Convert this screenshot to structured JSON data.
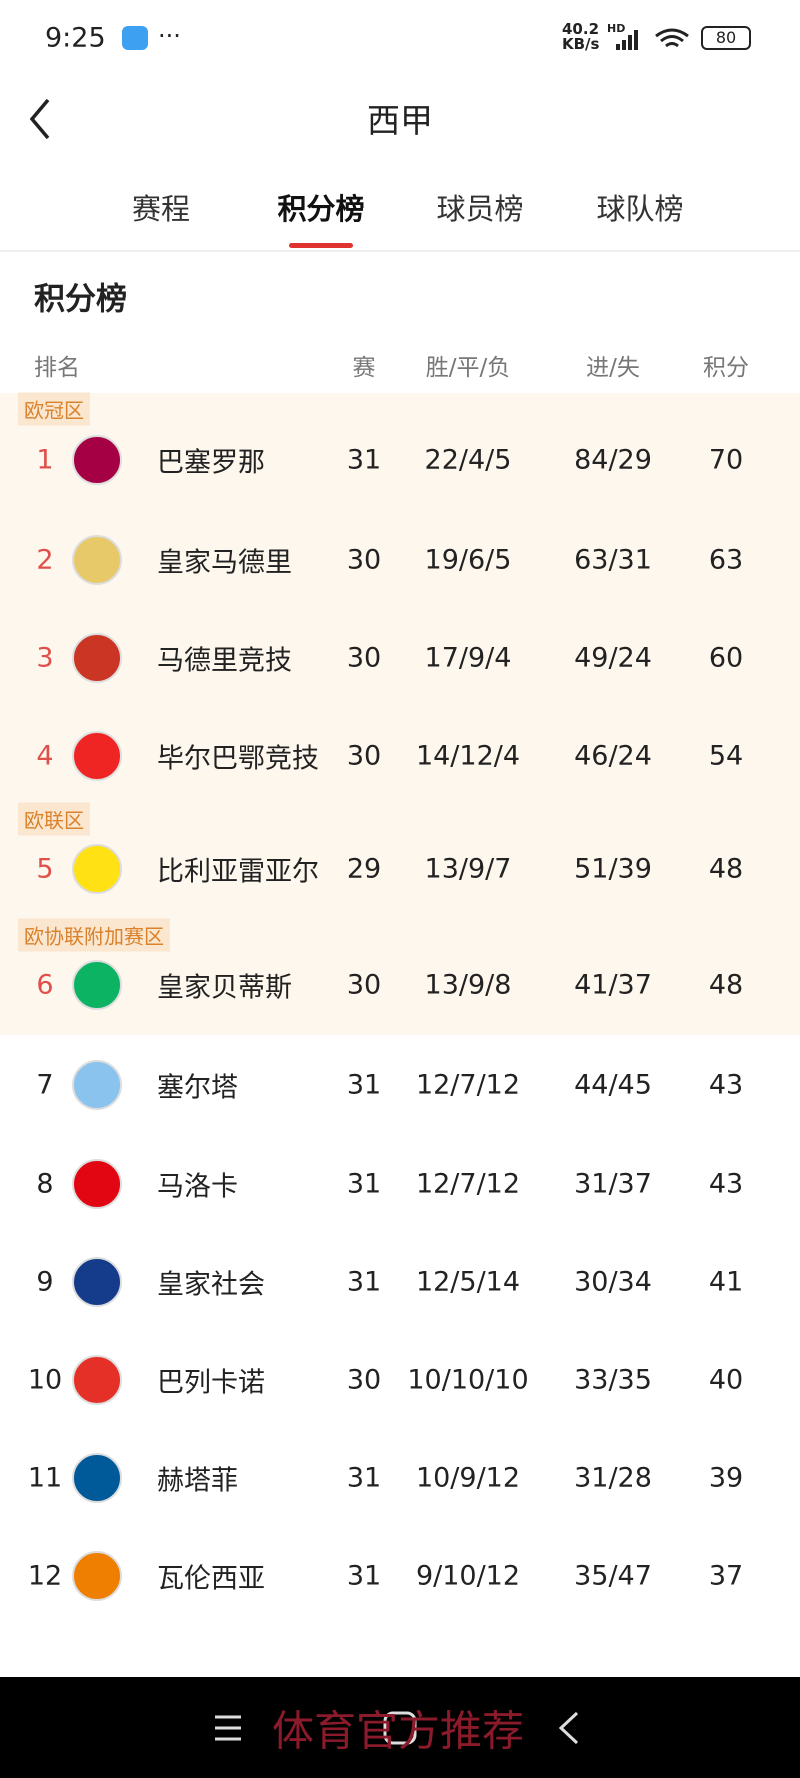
{
  "status_bar": {
    "time": "9:25",
    "network_speed": "40.2",
    "network_unit": "KB/s",
    "network_type": "HD",
    "battery": "80"
  },
  "header": {
    "title": "西甲"
  },
  "tabs": [
    "赛程",
    "积分榜",
    "球员榜",
    "球队榜"
  ],
  "active_tab": 1,
  "section": {
    "title": "积分榜"
  },
  "table": {
    "columns": [
      "排名",
      "赛",
      "胜/平/负",
      "进/失",
      "积分"
    ],
    "zones": [
      {
        "label": "欧冠区",
        "start_row": 0
      },
      {
        "label": "欧联区",
        "start_row": 4
      },
      {
        "label": "欧协联附加赛区",
        "start_row": 5
      }
    ],
    "rows": [
      {
        "rank": 1,
        "team": "巴塞罗那",
        "played": 31,
        "wdl": "22/4/5",
        "goals": "84/29",
        "points": 70
      },
      {
        "rank": 2,
        "team": "皇家马德里",
        "played": 30,
        "wdl": "19/6/5",
        "goals": "63/31",
        "points": 63
      },
      {
        "rank": 3,
        "team": "马德里竞技",
        "played": 30,
        "wdl": "17/9/4",
        "goals": "49/24",
        "points": 60
      },
      {
        "rank": 4,
        "team": "毕尔巴鄂竞技",
        "played": 30,
        "wdl": "14/12/4",
        "goals": "46/24",
        "points": 54
      },
      {
        "rank": 5,
        "team": "比利亚雷亚尔",
        "played": 29,
        "wdl": "13/9/7",
        "goals": "51/39",
        "points": 48
      },
      {
        "rank": 6,
        "team": "皇家贝蒂斯",
        "played": 30,
        "wdl": "13/9/8",
        "goals": "41/37",
        "points": 48
      },
      {
        "rank": 7,
        "team": "塞尔塔",
        "played": 31,
        "wdl": "12/7/12",
        "goals": "44/45",
        "points": 43
      },
      {
        "rank": 8,
        "team": "马洛卡",
        "played": 31,
        "wdl": "12/7/12",
        "goals": "31/37",
        "points": 43
      },
      {
        "rank": 9,
        "team": "皇家社会",
        "played": 31,
        "wdl": "12/5/14",
        "goals": "30/34",
        "points": 41
      },
      {
        "rank": 10,
        "team": "巴列卡诺",
        "played": 30,
        "wdl": "10/10/10",
        "goals": "33/35",
        "points": 40
      },
      {
        "rank": 11,
        "team": "赫塔菲",
        "played": 31,
        "wdl": "10/9/12",
        "goals": "31/28",
        "points": 39
      },
      {
        "rank": 12,
        "team": "瓦伦西亚",
        "played": 31,
        "wdl": "9/10/12",
        "goals": "35/47",
        "points": 37
      }
    ]
  },
  "watermark": "体育官方推荐"
}
